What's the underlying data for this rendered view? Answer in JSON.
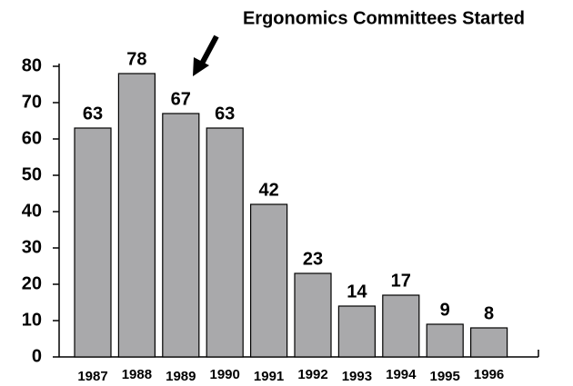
{
  "chart_data": {
    "type": "bar",
    "annotation": "Ergonomics Committees Started",
    "categories": [
      "1987",
      "1988",
      "1989",
      "1990",
      "1991",
      "1992",
      "1993",
      "1994",
      "1995",
      "1996"
    ],
    "values": [
      63,
      78,
      67,
      63,
      42,
      23,
      14,
      17,
      9,
      8
    ],
    "color": "#a9a9ab",
    "ylim": [
      0,
      80
    ],
    "yticks": [
      0,
      10,
      20,
      30,
      40,
      50,
      60,
      70,
      80
    ],
    "grid": false
  }
}
